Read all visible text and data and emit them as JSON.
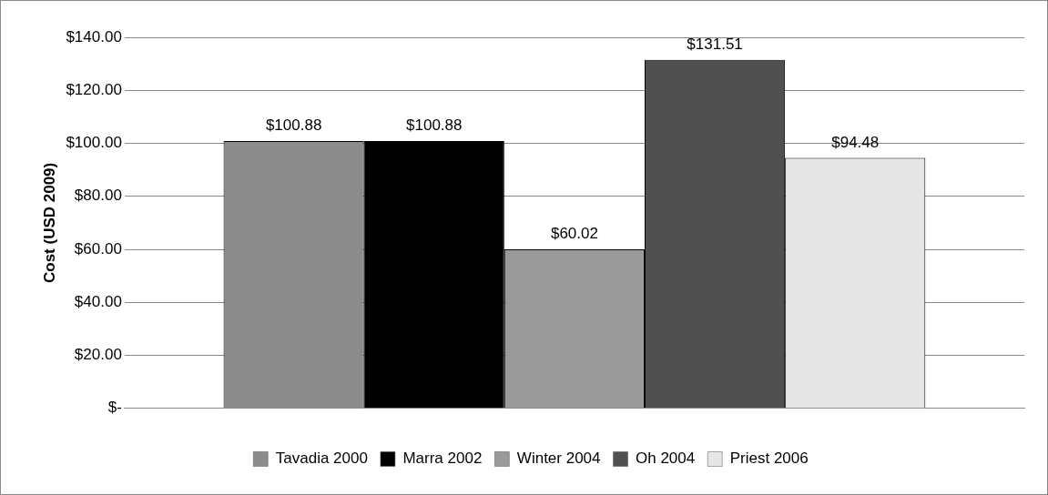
{
  "chart_data": {
    "type": "bar",
    "ylabel": "Cost (USD 2009)",
    "categories": [
      null
    ],
    "series": [
      {
        "name": "Tavadia 2000",
        "color": "#8c8c8c",
        "values": [
          100.88
        ],
        "value_labels": [
          "$100.88"
        ]
      },
      {
        "name": "Marra 2002",
        "color": "#000000",
        "values": [
          100.88
        ],
        "value_labels": [
          "$100.88"
        ]
      },
      {
        "name": "Winter 2004",
        "color": "#9a9a9a",
        "values": [
          60.02
        ],
        "value_labels": [
          "$60.02"
        ]
      },
      {
        "name": "Oh 2004",
        "color": "#505050",
        "values": [
          131.51
        ],
        "value_labels": [
          "$131.51"
        ]
      },
      {
        "name": "Priest 2006",
        "color": "#e6e6e6",
        "values": [
          94.48
        ],
        "value_labels": [
          "$94.48"
        ]
      }
    ],
    "ylim": [
      0,
      140
    ],
    "yticks": [
      {
        "value": 0,
        "label": "$-"
      },
      {
        "value": 20,
        "label": "$20.00"
      },
      {
        "value": 40,
        "label": "$40.00"
      },
      {
        "value": 60,
        "label": "$60.00"
      },
      {
        "value": 80,
        "label": "$80.00"
      },
      {
        "value": 100,
        "label": "$100.00"
      },
      {
        "value": 120,
        "label": "$120.00"
      },
      {
        "value": 140,
        "label": "$140.00"
      }
    ],
    "grid": "y",
    "legend": "bottom"
  }
}
